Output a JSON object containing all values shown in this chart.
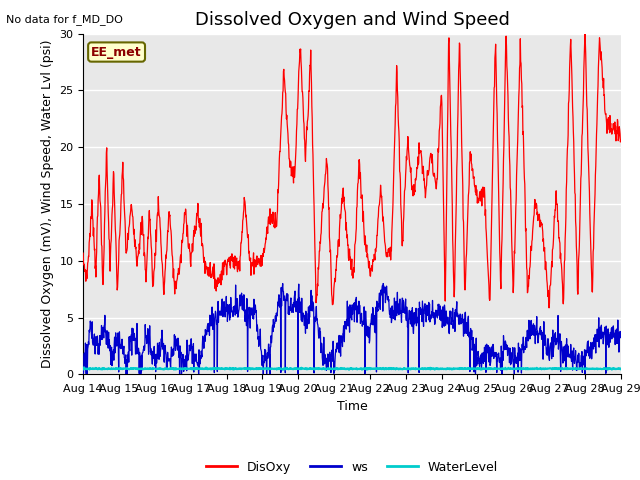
{
  "title": "Dissolved Oxygen and Wind Speed",
  "top_left_text": "No data for f_MD_DO",
  "box_label": "EE_met",
  "ylabel": "Dissolved Oxygen (mV), Wind Speed, Water Lvl (psi)",
  "xlabel": "Time",
  "ylim": [
    0,
    30
  ],
  "yticks": [
    0,
    5,
    10,
    15,
    20,
    25,
    30
  ],
  "x_tick_labels": [
    "Aug 14",
    "Aug 15",
    "Aug 16",
    "Aug 17",
    "Aug 18",
    "Aug 19",
    "Aug 20",
    "Aug 21",
    "Aug 22",
    "Aug 23",
    "Aug 24",
    "Aug 25",
    "Aug 26",
    "Aug 27",
    "Aug 28",
    "Aug 29"
  ],
  "disoxy_color": "#ff0000",
  "ws_color": "#0000cc",
  "waterlevel_color": "#00cccc",
  "bg_color": "#e8e8e8",
  "legend_labels": [
    "DisOxy",
    "ws",
    "WaterLevel"
  ],
  "grid_color": "white",
  "title_fontsize": 13,
  "label_fontsize": 9,
  "tick_fontsize": 8,
  "disoxy_keypoints": [
    [
      0.0,
      10.0
    ],
    [
      0.1,
      8.5
    ],
    [
      0.25,
      15.0
    ],
    [
      0.35,
      9.0
    ],
    [
      0.45,
      18.0
    ],
    [
      0.55,
      7.5
    ],
    [
      0.65,
      20.0
    ],
    [
      0.75,
      9.0
    ],
    [
      0.85,
      18.0
    ],
    [
      0.95,
      7.0
    ],
    [
      1.1,
      18.5
    ],
    [
      1.2,
      10.5
    ],
    [
      1.35,
      15.0
    ],
    [
      1.5,
      10.0
    ],
    [
      1.65,
      13.5
    ],
    [
      1.75,
      8.5
    ],
    [
      1.85,
      14.5
    ],
    [
      1.95,
      7.5
    ],
    [
      2.1,
      15.5
    ],
    [
      2.25,
      7.2
    ],
    [
      2.4,
      14.5
    ],
    [
      2.55,
      7.5
    ],
    [
      2.7,
      9.5
    ],
    [
      2.85,
      14.5
    ],
    [
      3.0,
      10.0
    ],
    [
      3.2,
      14.5
    ],
    [
      3.4,
      9.5
    ],
    [
      3.6,
      9.0
    ],
    [
      3.75,
      8.0
    ],
    [
      4.0,
      10.0
    ],
    [
      4.2,
      10.0
    ],
    [
      4.35,
      9.5
    ],
    [
      4.5,
      15.5
    ],
    [
      4.65,
      9.8
    ],
    [
      4.8,
      10.0
    ],
    [
      5.0,
      10.0
    ],
    [
      5.2,
      14.0
    ],
    [
      5.4,
      13.5
    ],
    [
      5.6,
      27.0
    ],
    [
      5.75,
      19.0
    ],
    [
      5.9,
      17.0
    ],
    [
      6.05,
      29.0
    ],
    [
      6.2,
      19.0
    ],
    [
      6.35,
      28.0
    ],
    [
      6.5,
      6.0
    ],
    [
      6.65,
      13.5
    ],
    [
      6.8,
      19.0
    ],
    [
      6.95,
      6.0
    ],
    [
      7.1,
      11.0
    ],
    [
      7.25,
      16.5
    ],
    [
      7.4,
      10.5
    ],
    [
      7.55,
      9.0
    ],
    [
      7.7,
      19.0
    ],
    [
      7.85,
      12.0
    ],
    [
      8.0,
      9.0
    ],
    [
      8.15,
      10.5
    ],
    [
      8.3,
      16.5
    ],
    [
      8.45,
      10.5
    ],
    [
      8.6,
      11.0
    ],
    [
      8.75,
      27.0
    ],
    [
      8.9,
      11.0
    ],
    [
      9.05,
      21.0
    ],
    [
      9.2,
      15.5
    ],
    [
      9.4,
      20.0
    ],
    [
      9.55,
      16.0
    ],
    [
      9.7,
      19.5
    ],
    [
      9.85,
      16.0
    ],
    [
      10.0,
      25.0
    ],
    [
      10.1,
      6.0
    ],
    [
      10.2,
      30.0
    ],
    [
      10.35,
      6.0
    ],
    [
      10.5,
      30.0
    ],
    [
      10.65,
      7.0
    ],
    [
      10.8,
      19.5
    ],
    [
      11.0,
      15.5
    ],
    [
      11.2,
      16.0
    ],
    [
      11.35,
      6.0
    ],
    [
      11.5,
      30.0
    ],
    [
      11.65,
      7.0
    ],
    [
      11.8,
      30.0
    ],
    [
      12.0,
      7.0
    ],
    [
      12.2,
      29.5
    ],
    [
      12.4,
      7.0
    ],
    [
      12.6,
      15.0
    ],
    [
      12.8,
      13.0
    ],
    [
      13.0,
      6.0
    ],
    [
      13.2,
      16.0
    ],
    [
      13.4,
      6.5
    ],
    [
      13.6,
      30.0
    ],
    [
      13.8,
      7.0
    ],
    [
      14.0,
      30.0
    ],
    [
      14.2,
      7.0
    ],
    [
      14.4,
      30.0
    ],
    [
      14.6,
      22.0
    ],
    [
      14.8,
      21.5
    ],
    [
      15.0,
      21.0
    ]
  ],
  "ws_keypoints": [
    [
      0.0,
      1.0
    ],
    [
      0.2,
      3.5
    ],
    [
      0.4,
      2.5
    ],
    [
      0.6,
      4.0
    ],
    [
      0.8,
      2.0
    ],
    [
      1.0,
      3.5
    ],
    [
      1.2,
      1.0
    ],
    [
      1.4,
      3.5
    ],
    [
      1.6,
      1.0
    ],
    [
      1.8,
      3.5
    ],
    [
      2.0,
      1.0
    ],
    [
      2.2,
      3.0
    ],
    [
      2.4,
      1.0
    ],
    [
      2.6,
      2.8
    ],
    [
      2.8,
      1.0
    ],
    [
      3.0,
      2.5
    ],
    [
      3.2,
      1.0
    ],
    [
      3.5,
      4.5
    ],
    [
      3.8,
      5.5
    ],
    [
      4.0,
      6.0
    ],
    [
      4.2,
      5.5
    ],
    [
      4.4,
      6.5
    ],
    [
      4.6,
      5.0
    ],
    [
      4.8,
      6.0
    ],
    [
      5.0,
      1.0
    ],
    [
      5.2,
      2.5
    ],
    [
      5.4,
      5.5
    ],
    [
      5.6,
      7.5
    ],
    [
      5.8,
      5.5
    ],
    [
      6.0,
      7.0
    ],
    [
      6.2,
      4.5
    ],
    [
      6.4,
      6.5
    ],
    [
      6.6,
      3.0
    ],
    [
      6.8,
      1.0
    ],
    [
      7.0,
      1.5
    ],
    [
      7.2,
      3.0
    ],
    [
      7.4,
      5.0
    ],
    [
      7.6,
      6.0
    ],
    [
      7.8,
      5.0
    ],
    [
      8.0,
      4.0
    ],
    [
      8.2,
      5.5
    ],
    [
      8.4,
      7.5
    ],
    [
      8.6,
      5.5
    ],
    [
      8.8,
      6.0
    ],
    [
      9.0,
      5.5
    ],
    [
      9.2,
      4.5
    ],
    [
      9.4,
      5.5
    ],
    [
      9.6,
      5.5
    ],
    [
      9.8,
      5.0
    ],
    [
      10.0,
      5.5
    ],
    [
      10.2,
      4.5
    ],
    [
      10.4,
      5.0
    ],
    [
      10.6,
      4.5
    ],
    [
      10.8,
      4.0
    ],
    [
      11.0,
      1.0
    ],
    [
      11.2,
      1.5
    ],
    [
      11.4,
      2.0
    ],
    [
      11.6,
      1.0
    ],
    [
      11.8,
      2.5
    ],
    [
      12.0,
      1.0
    ],
    [
      12.2,
      2.0
    ],
    [
      12.4,
      3.5
    ],
    [
      12.6,
      4.0
    ],
    [
      12.8,
      3.5
    ],
    [
      13.0,
      2.0
    ],
    [
      13.2,
      3.5
    ],
    [
      13.4,
      2.0
    ],
    [
      13.6,
      2.0
    ],
    [
      13.8,
      1.0
    ],
    [
      14.0,
      1.5
    ],
    [
      14.2,
      2.5
    ],
    [
      14.4,
      3.5
    ],
    [
      14.6,
      3.5
    ],
    [
      14.8,
      3.5
    ],
    [
      15.0,
      3.5
    ]
  ]
}
